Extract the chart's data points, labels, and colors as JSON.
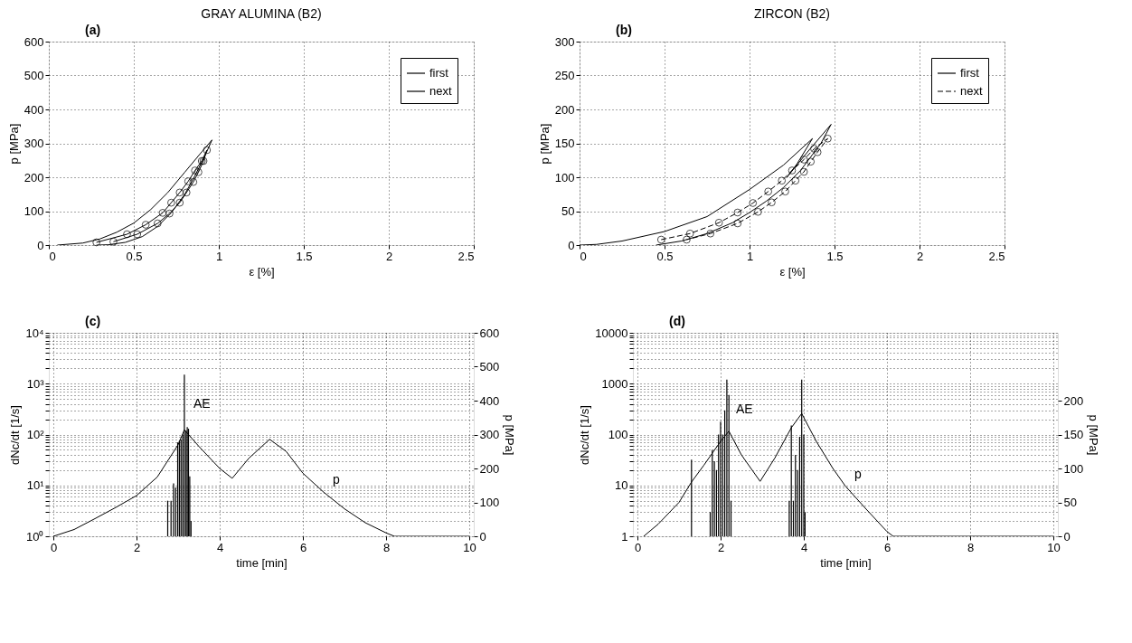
{
  "chart_data": [
    {
      "type": "line",
      "title": "GRAY ALUMINA (B2)",
      "annotations": [
        "(a)"
      ],
      "xlabel": "ε [%]",
      "ylabel": "p [MPa]",
      "xlim": [
        0,
        2.5
      ],
      "xticks": [
        0,
        0.5,
        1,
        1.5,
        2,
        2.5
      ],
      "ylim": [
        0,
        600
      ],
      "yticks": [
        0,
        100,
        200,
        300,
        400,
        500,
        600
      ],
      "grid": true,
      "legend": "top right",
      "series": [
        {
          "name": "first",
          "color": "#000000",
          "marker": "none",
          "line_style": "solid",
          "x": [
            0.05,
            0.2,
            0.3,
            0.4,
            0.5,
            0.6,
            0.7,
            0.8,
            0.9,
            0.96,
            0.92,
            0.86,
            0.8,
            0.72,
            0.64,
            0.55,
            0.45,
            0.35,
            0.28
          ],
          "values": [
            0,
            6,
            18,
            38,
            65,
            105,
            155,
            215,
            275,
            310,
            265,
            205,
            150,
            95,
            55,
            25,
            8,
            1,
            0
          ]
        },
        {
          "name": "next",
          "color": "#000000",
          "marker": "circle",
          "line_style": "solid",
          "x": [
            0.28,
            0.46,
            0.57,
            0.67,
            0.72,
            0.77,
            0.82,
            0.86,
            0.9,
            0.93,
            0.91,
            0.88,
            0.85,
            0.81,
            0.77,
            0.71,
            0.64,
            0.52,
            0.38
          ],
          "values": [
            8,
            32,
            60,
            95,
            125,
            155,
            188,
            220,
            248,
            280,
            248,
            215,
            186,
            155,
            125,
            93,
            64,
            32,
            10
          ]
        }
      ]
    },
    {
      "type": "line",
      "title": "ZIRCON (B2)",
      "annotations": [
        "(b)"
      ],
      "xlabel": "ε [%]",
      "ylabel": "p [MPa]",
      "xlim": [
        0,
        2.5
      ],
      "xticks": [
        0,
        0.5,
        1,
        1.5,
        2,
        2.5
      ],
      "ylim": [
        0,
        300
      ],
      "yticks": [
        0,
        50,
        100,
        150,
        200,
        250,
        300
      ],
      "grid": true,
      "legend": "top right",
      "series": [
        {
          "name": "first",
          "color": "#000000",
          "marker": "none",
          "line_style": "solid",
          "x": [
            0,
            0.1,
            0.25,
            0.5,
            0.75,
            1.0,
            1.2,
            1.37,
            1.28,
            1.22,
            1.35,
            1.48,
            1.42,
            1.3,
            1.2,
            1.1,
            1.0,
            0.9,
            0.75,
            0.6,
            0.45
          ],
          "values": [
            0,
            1,
            6,
            20,
            42,
            82,
            118,
            157,
            120,
            100,
            140,
            178,
            150,
            110,
            85,
            65,
            48,
            33,
            17,
            6,
            0
          ]
        },
        {
          "name": "next",
          "color": "#000000",
          "marker": "circle",
          "line_style": "dashed",
          "x": [
            0.48,
            0.65,
            0.82,
            0.93,
            1.02,
            1.11,
            1.19,
            1.25,
            1.32,
            1.38,
            1.46,
            1.4,
            1.36,
            1.32,
            1.27,
            1.21,
            1.13,
            1.05,
            0.93,
            0.77,
            0.63
          ],
          "values": [
            8,
            17,
            33,
            48,
            62,
            79,
            95,
            110,
            126,
            142,
            157,
            137,
            123,
            108,
            95,
            79,
            63,
            49,
            32,
            17,
            8
          ]
        }
      ]
    },
    {
      "type": "bar",
      "annotations": [
        "(c)"
      ],
      "xlabel": "time [min]",
      "ylabel": "dNc/dt [1/s]",
      "y2label": "p [MPa]",
      "xlim": [
        0,
        10
      ],
      "xticks": [
        0,
        2,
        4,
        6,
        8,
        10
      ],
      "log": true,
      "ylim": [
        1,
        10000
      ],
      "grid": true,
      "yticks": [
        {
          "value": 1,
          "label": "10⁰"
        },
        {
          "value": 2,
          "label": null
        },
        {
          "value": 3,
          "label": null
        },
        {
          "value": 4,
          "label": null
        },
        {
          "value": 5,
          "label": null
        },
        {
          "value": 6,
          "label": null
        },
        {
          "value": 7,
          "label": null
        },
        {
          "value": 8,
          "label": null
        },
        {
          "value": 9,
          "label": null
        },
        {
          "value": 10,
          "label": "10¹"
        },
        {
          "value": 20,
          "label": null
        },
        {
          "value": 30,
          "label": null
        },
        {
          "value": 40,
          "label": null
        },
        {
          "value": 50,
          "label": null
        },
        {
          "value": 60,
          "label": null
        },
        {
          "value": 70,
          "label": null
        },
        {
          "value": 80,
          "label": null
        },
        {
          "value": 90,
          "label": null
        },
        {
          "value": 100,
          "label": "10²"
        },
        {
          "value": 200,
          "label": null
        },
        {
          "value": 300,
          "label": null
        },
        {
          "value": 400,
          "label": null
        },
        {
          "value": 500,
          "label": null
        },
        {
          "value": 600,
          "label": null
        },
        {
          "value": 700,
          "label": null
        },
        {
          "value": 800,
          "label": null
        },
        {
          "value": 900,
          "label": null
        },
        {
          "value": 1000,
          "label": "10³"
        },
        {
          "value": 2000,
          "label": null
        },
        {
          "value": 3000,
          "label": null
        },
        {
          "value": 4000,
          "label": null
        },
        {
          "value": 5000,
          "label": null
        },
        {
          "value": 6000,
          "label": null
        },
        {
          "value": 7000,
          "label": null
        },
        {
          "value": 8000,
          "label": null
        },
        {
          "value": 9000,
          "label": null
        },
        {
          "value": 10000,
          "label": "10⁴"
        }
      ],
      "y2lim": [
        0,
        600
      ],
      "y2ticks": [
        0,
        100,
        200,
        300,
        400,
        500,
        600
      ],
      "series": [
        {
          "type": "bar",
          "name": "AE",
          "color": "#000000",
          "x": [
            2.75,
            2.83,
            2.89,
            2.94,
            2.99,
            3.03,
            3.07,
            3.11,
            3.15,
            3.19,
            3.22,
            3.25,
            3.28,
            3.31
          ],
          "values": [
            5,
            5,
            11,
            9,
            70,
            75,
            80,
            100,
            1500,
            120,
            140,
            130,
            15,
            2
          ]
        },
        {
          "type": "line",
          "name": "p",
          "axis": "y2",
          "color": "#000000",
          "marker": "none",
          "line_style": "solid",
          "x": [
            0,
            0.5,
            1,
            1.5,
            2,
            2.5,
            3,
            3.15,
            3.5,
            4,
            4.3,
            4.7,
            5.2,
            5.6,
            6,
            6.5,
            7,
            7.5,
            8,
            8.2,
            10
          ],
          "values": [
            0,
            20,
            52,
            85,
            120,
            175,
            270,
            314,
            265,
            200,
            171,
            230,
            286,
            250,
            186,
            130,
            81,
            40,
            10,
            0,
            0
          ]
        }
      ]
    },
    {
      "type": "bar",
      "annotations": [
        "(d)"
      ],
      "xlabel": "time [min]",
      "ylabel": "dNc/dt [1/s]",
      "y2label": "p [MPa]",
      "xlim": [
        0,
        10
      ],
      "xticks": [
        0,
        2,
        4,
        6,
        8,
        10
      ],
      "log": true,
      "ylim": [
        1,
        10000
      ],
      "grid": true,
      "yticks": [
        1,
        {
          "value": 2,
          "label": null
        },
        {
          "value": 3,
          "label": null
        },
        {
          "value": 4,
          "label": null
        },
        {
          "value": 5,
          "label": null
        },
        {
          "value": 6,
          "label": null
        },
        {
          "value": 7,
          "label": null
        },
        {
          "value": 8,
          "label": null
        },
        {
          "value": 9,
          "label": null
        },
        10,
        {
          "value": 20,
          "label": null
        },
        {
          "value": 30,
          "label": null
        },
        {
          "value": 40,
          "label": null
        },
        {
          "value": 50,
          "label": null
        },
        {
          "value": 60,
          "label": null
        },
        {
          "value": 70,
          "label": null
        },
        {
          "value": 80,
          "label": null
        },
        {
          "value": 90,
          "label": null
        },
        100,
        {
          "value": 200,
          "label": null
        },
        {
          "value": 300,
          "label": null
        },
        {
          "value": 400,
          "label": null
        },
        {
          "value": 500,
          "label": null
        },
        {
          "value": 600,
          "label": null
        },
        {
          "value": 700,
          "label": null
        },
        {
          "value": 800,
          "label": null
        },
        {
          "value": 900,
          "label": null
        },
        1000,
        {
          "value": 2000,
          "label": null
        },
        {
          "value": 3000,
          "label": null
        },
        {
          "value": 4000,
          "label": null
        },
        {
          "value": 5000,
          "label": null
        },
        {
          "value": 6000,
          "label": null
        },
        {
          "value": 7000,
          "label": null
        },
        {
          "value": 8000,
          "label": null
        },
        {
          "value": 9000,
          "label": null
        },
        10000
      ],
      "y2lim": [
        0,
        300
      ],
      "y2ticks": [
        0,
        50,
        100,
        150,
        200
      ],
      "series": [
        {
          "type": "bar",
          "name": "AE",
          "color": "#000000",
          "x": [
            1.3,
            1.75,
            1.8,
            1.85,
            1.9,
            1.95,
            2.0,
            2.05,
            2.1,
            2.15,
            2.2,
            2.25,
            3.65,
            3.7,
            3.75,
            3.8,
            3.85,
            3.9,
            3.95,
            4.0,
            4.03
          ],
          "values": [
            32,
            3,
            50,
            30,
            20,
            100,
            180,
            100,
            300,
            1200,
            600,
            5,
            5,
            150,
            5,
            40,
            20,
            90,
            1200,
            100,
            3
          ]
        },
        {
          "type": "line",
          "name": "p",
          "axis": "y2",
          "color": "#000000",
          "marker": "none",
          "line_style": "solid",
          "x": [
            0.15,
            0.5,
            1,
            1.3,
            1.6,
            2,
            2.2,
            2.5,
            2.95,
            3.3,
            3.7,
            3.95,
            4.3,
            4.7,
            5,
            5.5,
            6,
            6.15,
            10
          ],
          "values": [
            0,
            18,
            50,
            80,
            105,
            140,
            155,
            120,
            81,
            115,
            160,
            181,
            140,
            100,
            74,
            40,
            7,
            0,
            0
          ]
        }
      ]
    }
  ]
}
